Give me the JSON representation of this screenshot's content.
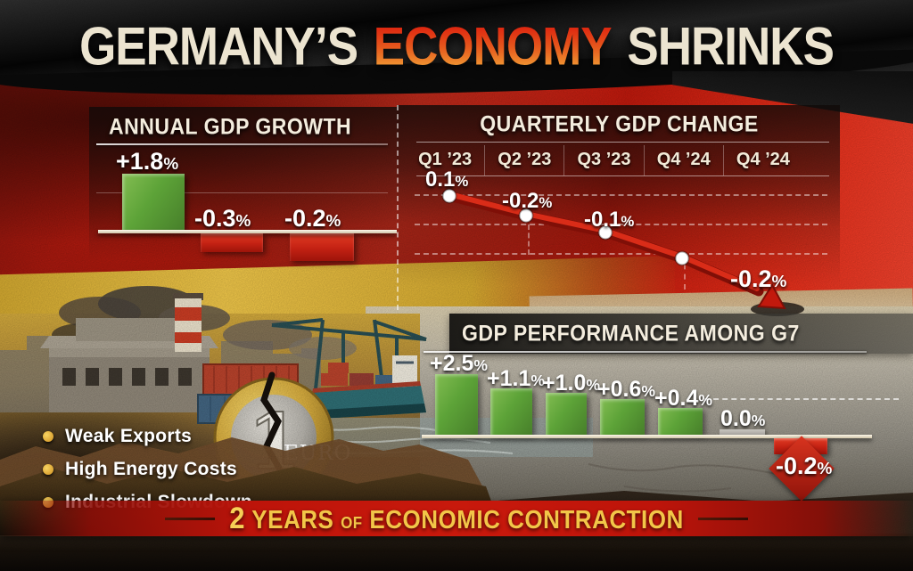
{
  "header": {
    "title_prefix": "GERMANY’S",
    "title_highlight": "ECONOMY",
    "title_suffix": "SHRINKS"
  },
  "chart_data": [
    {
      "id": "annual_gdp_growth",
      "type": "bar",
      "title": "ANNUAL GDP GROWTH",
      "values": [
        1.8,
        -0.3,
        -0.2
      ],
      "labels": [
        "+1.8%",
        "-0.3%",
        "-0.2%"
      ],
      "bar_colors": [
        "#5da338",
        "#c32113",
        "#c32113"
      ],
      "unit": "%",
      "ylim": [
        -0.5,
        2.2
      ],
      "grid": "single faint line, white baseline at zero"
    },
    {
      "id": "quarterly_gdp_change",
      "type": "line",
      "title": "QUARTERLY GDP CHANGE",
      "categories": [
        "Q1 ’23",
        "Q2 ’23",
        "Q3 ’23",
        "Q4 ’24",
        "Q4 ’24"
      ],
      "values": [
        0.1,
        -0.2,
        -0.1,
        null,
        -0.2
      ],
      "point_labels": [
        "0.1%",
        "-0.2%",
        "-0.1%",
        "",
        "-0.2%"
      ],
      "line_color": "#c2190d",
      "marker_color": "#ffffff",
      "trend": "declining line ending in red arrow",
      "grid": "dashed white horizontal and vertical lines",
      "unit": "%"
    },
    {
      "id": "gdp_performance_g7",
      "type": "bar",
      "title": "GDP PERFORMANCE AMONG G7",
      "values": [
        2.5,
        1.1,
        1.0,
        0.6,
        0.4,
        0.0,
        -0.2
      ],
      "labels": [
        "+2.5%",
        "+1.1%",
        "+1.0%",
        "+0.6%",
        "+0.4%",
        "0.0%",
        "-0.2%"
      ],
      "bar_colors": [
        "#5da338",
        "#5da338",
        "#5da338",
        "#5da338",
        "#5da338",
        "#b0ada8",
        "#c32113"
      ],
      "unit": "%",
      "ylim": [
        -0.5,
        2.8
      ],
      "grid": "white baseline at zero, dashed reference line on right"
    }
  ],
  "factors": {
    "items": [
      "Weak Exports",
      "High Energy Costs",
      "Industrial Slowdown"
    ]
  },
  "banner": {
    "number": "2",
    "years": "YEARS",
    "of": "OF",
    "rest": "ECONOMIC CONTRACTION"
  },
  "coin": {
    "value": "1",
    "currency": "EURO"
  },
  "colors": {
    "flag_black": "#0a0a0a",
    "flag_red": "#d92a17",
    "flag_gold": "#e4bd46",
    "headline_cream": "#ece4d0",
    "headline_gradient_top": "#dd1f0e",
    "headline_gradient_bottom": "#f2a838",
    "bar_green": "#5da338",
    "bar_red": "#c32113",
    "bar_gray": "#b0ada8",
    "banner_red": "#c8190c",
    "banner_gold": "#f2c648"
  }
}
